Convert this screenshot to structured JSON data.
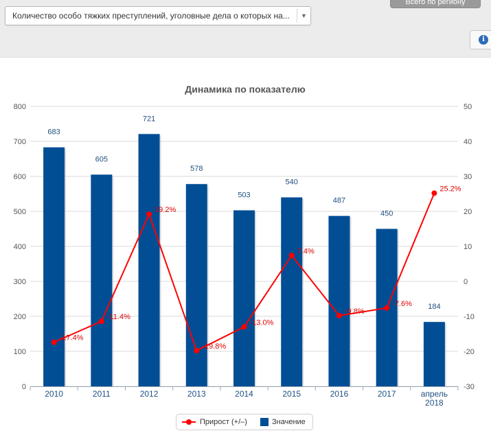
{
  "toolbar": {
    "indicator_select_text": "Количество особо тяжких преступлений, уголовные дела о которых на...",
    "region_button_label": "Всего по региону",
    "info_icon": "info-icon"
  },
  "colors": {
    "bar": "#024e95",
    "line": "#ff0000",
    "bar_label": "#1e4e7e",
    "axis_text": "#555555"
  },
  "chart_data": {
    "type": "bar",
    "title": "Динамика по показателю",
    "categories": [
      "2010",
      "2011",
      "2012",
      "2013",
      "2014",
      "2015",
      "2016",
      "2017",
      "апрель 2018"
    ],
    "series": [
      {
        "name": "Значение",
        "type": "bar",
        "axis": "left",
        "values": [
          683,
          605,
          721,
          578,
          503,
          540,
          487,
          450,
          184
        ],
        "labels": [
          "683",
          "605",
          "721",
          "578",
          "503",
          "540",
          "487",
          "450",
          "184"
        ]
      },
      {
        "name": "Прирост (+/–)",
        "type": "line",
        "axis": "right",
        "values": [
          -17.4,
          -11.4,
          19.2,
          -19.8,
          -13.0,
          7.4,
          -9.8,
          -7.6,
          25.2
        ],
        "labels": [
          "-17.4%",
          "-11.4%",
          "19.2%",
          "-19.8%",
          "-13.0%",
          "7.4%",
          "-9.8%",
          "-7.6%",
          "25.2%"
        ]
      }
    ],
    "y_left": {
      "min": 0,
      "max": 800,
      "step": 100,
      "ticks": [
        "0",
        "100",
        "200",
        "300",
        "400",
        "500",
        "600",
        "700",
        "800"
      ]
    },
    "y_right": {
      "min": -30,
      "max": 50,
      "step": 10,
      "ticks": [
        "-30",
        "-20",
        "-10",
        "0",
        "10",
        "20",
        "30",
        "40",
        "50"
      ]
    },
    "grid": true,
    "legend_position": "bottom-center"
  }
}
